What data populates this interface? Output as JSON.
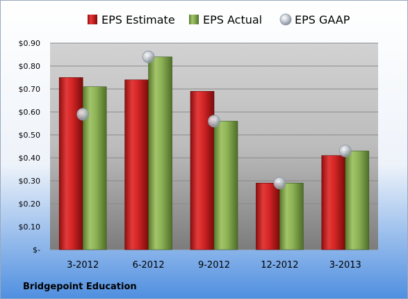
{
  "company": "Bridgepoint Education",
  "chart_data": {
    "type": "bar",
    "categories": [
      "3-2012",
      "6-2012",
      "9-2012",
      "12-2012",
      "3-2013"
    ],
    "series": [
      {
        "name": "EPS Estimate",
        "kind": "bar",
        "color": "#cc1a1a",
        "values": [
          0.75,
          0.74,
          0.69,
          0.29,
          0.41
        ]
      },
      {
        "name": "EPS Actual",
        "kind": "bar",
        "color": "#7ea34a",
        "values": [
          0.71,
          0.84,
          0.56,
          0.29,
          0.43
        ]
      },
      {
        "name": "EPS GAAP",
        "kind": "marker",
        "color": "#a9b3bf",
        "values": [
          0.59,
          0.84,
          0.56,
          0.29,
          0.43
        ]
      }
    ],
    "ylim": [
      0,
      0.9
    ],
    "yticks": [
      {
        "value": 0.9,
        "label": "$0.90"
      },
      {
        "value": 0.8,
        "label": "$0.80"
      },
      {
        "value": 0.7,
        "label": "$0.70"
      },
      {
        "value": 0.6,
        "label": "$0.60"
      },
      {
        "value": 0.5,
        "label": "$0.50"
      },
      {
        "value": 0.4,
        "label": "$0.40"
      },
      {
        "value": 0.3,
        "label": "$0.30"
      },
      {
        "value": 0.2,
        "label": "$0.20"
      },
      {
        "value": 0.1,
        "label": "$0.10"
      },
      {
        "value": 0,
        "label": "$-"
      }
    ],
    "grid": true,
    "legend": "top"
  }
}
